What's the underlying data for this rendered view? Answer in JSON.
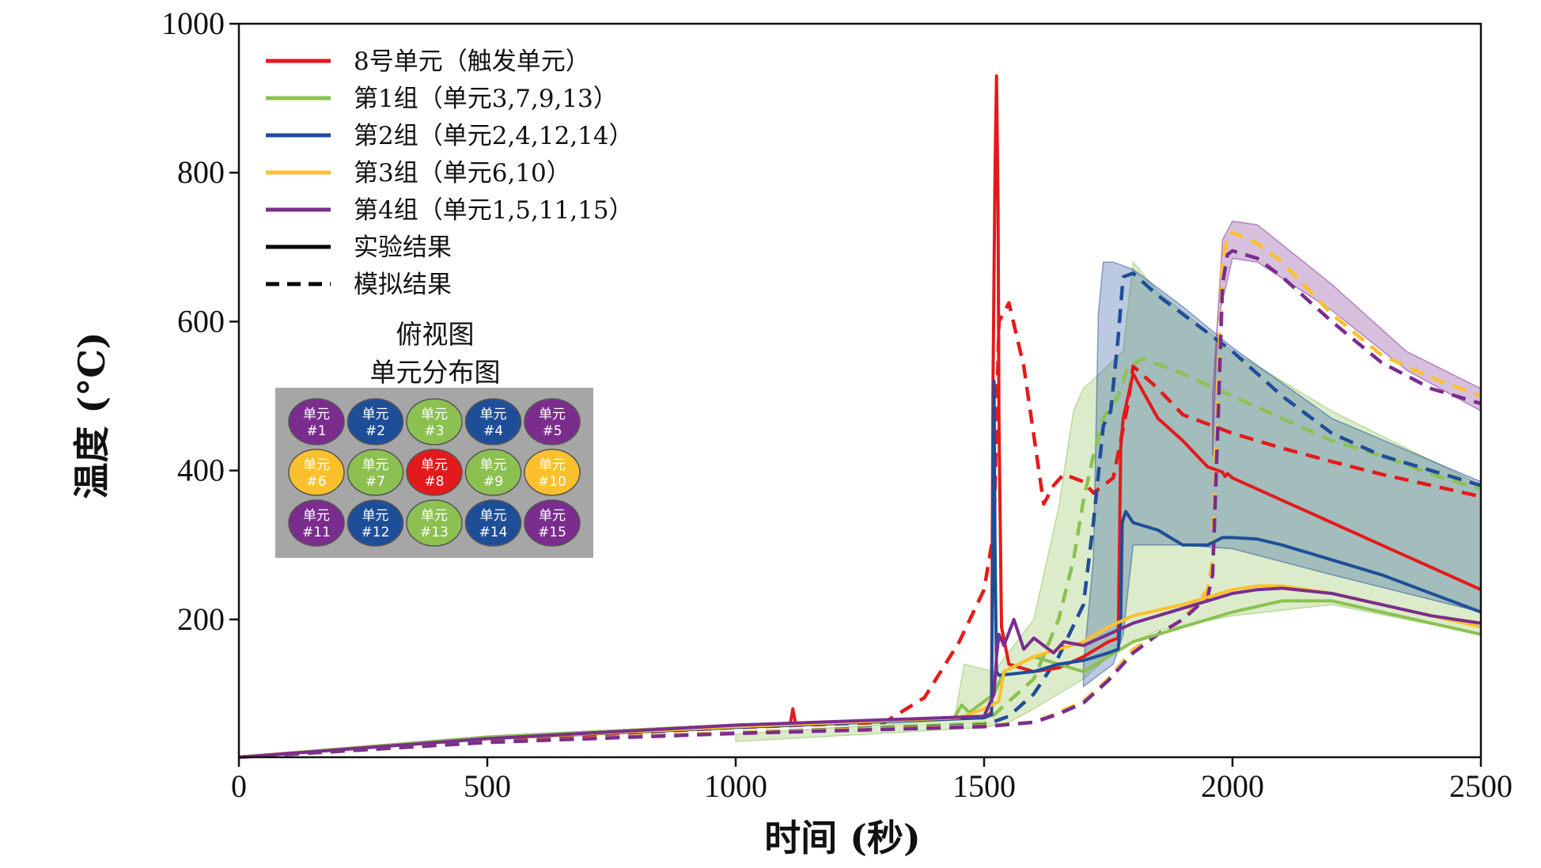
{
  "chart_data": {
    "type": "line",
    "xlabel": "时间 (秒)",
    "ylabel": "温度 (°C)",
    "xlim": [
      0,
      2500
    ],
    "ylim": [
      15,
      1000
    ],
    "xticks": [
      0,
      500,
      1000,
      1500,
      2000,
      2500
    ],
    "yticks": [
      200,
      400,
      600,
      800,
      1000
    ],
    "grid": false,
    "legend_position": "top-left",
    "legend": [
      {
        "label": "8号单元（触发单元）",
        "color": "#e31a1c",
        "style": "solid"
      },
      {
        "label": "第1组（单元3,7,9,13）",
        "color": "#8cc152",
        "style": "solid"
      },
      {
        "label": "第2组（单元2,4,12,14）",
        "color": "#1f4e99",
        "style": "solid"
      },
      {
        "label": "第3组（单元6,10）",
        "color": "#fbc02d",
        "style": "solid"
      },
      {
        "label": "第4组（单元1,5,11,15）",
        "color": "#7b2d8e",
        "style": "solid"
      },
      {
        "label": "实验结果",
        "color": "#000000",
        "style": "solid"
      },
      {
        "label": "模拟结果",
        "color": "#000000",
        "style": "dashed"
      }
    ],
    "bands": [
      {
        "name": "第1组",
        "color": "#8cc152",
        "upper": [
          [
            1000,
            46
          ],
          [
            1440,
            65
          ],
          [
            1460,
            140
          ],
          [
            1520,
            130
          ],
          [
            1600,
            200
          ],
          [
            1650,
            350
          ],
          [
            1680,
            480
          ],
          [
            1700,
            510
          ],
          [
            1780,
            560
          ],
          [
            1800,
            680
          ],
          [
            1850,
            640
          ],
          [
            2000,
            560
          ],
          [
            2200,
            480
          ],
          [
            2500,
            380
          ]
        ],
        "lower": [
          [
            2500,
            180
          ],
          [
            2200,
            220
          ],
          [
            2000,
            205
          ],
          [
            1850,
            185
          ],
          [
            1800,
            170
          ],
          [
            1750,
            150
          ],
          [
            1700,
            120
          ],
          [
            1650,
            100
          ],
          [
            1600,
            80
          ],
          [
            1550,
            62
          ],
          [
            1500,
            55
          ],
          [
            1000,
            36
          ]
        ]
      },
      {
        "name": "第2组",
        "color": "#1f4e99",
        "upper": [
          [
            1700,
            140
          ],
          [
            1720,
            280
          ],
          [
            1730,
            610
          ],
          [
            1740,
            680
          ],
          [
            1760,
            680
          ],
          [
            1800,
            670
          ],
          [
            1900,
            620
          ],
          [
            2000,
            565
          ],
          [
            2200,
            470
          ],
          [
            2500,
            385
          ]
        ],
        "lower": [
          [
            2500,
            210
          ],
          [
            2200,
            260
          ],
          [
            2000,
            295
          ],
          [
            1900,
            300
          ],
          [
            1800,
            300
          ],
          [
            1780,
            180
          ],
          [
            1760,
            140
          ],
          [
            1720,
            120
          ],
          [
            1700,
            110
          ]
        ]
      },
      {
        "name": "第4组",
        "color": "#7b2d8e",
        "upper": [
          [
            1960,
            500
          ],
          [
            1980,
            710
          ],
          [
            2000,
            735
          ],
          [
            2050,
            730
          ],
          [
            2200,
            650
          ],
          [
            2350,
            560
          ],
          [
            2500,
            510
          ]
        ],
        "lower": [
          [
            2500,
            480
          ],
          [
            2350,
            535
          ],
          [
            2200,
            615
          ],
          [
            2050,
            680
          ],
          [
            2000,
            685
          ],
          [
            1970,
            600
          ],
          [
            1960,
            420
          ]
        ]
      }
    ],
    "series": [
      {
        "name": "8号单元（触发单元）",
        "color": "#e31a1c",
        "style": "solid",
        "x": [
          0,
          500,
          1000,
          1110,
          1115,
          1120,
          1125,
          1500,
          1515,
          1518,
          1522,
          1525,
          1528,
          1530,
          1535,
          1550,
          1600,
          1650,
          1700,
          1750,
          1770,
          1775,
          1780,
          1790,
          1800,
          1850,
          1900,
          1950,
          1980,
          1985,
          1990,
          2000,
          2050,
          2100,
          2200,
          2300,
          2400,
          2500
        ],
        "y": [
          15,
          42,
          58,
          60,
          80,
          62,
          60,
          68,
          75,
          520,
          800,
          930,
          760,
          470,
          190,
          140,
          130,
          135,
          150,
          170,
          175,
          430,
          470,
          500,
          530,
          470,
          440,
          405,
          398,
          392,
          396,
          390,
          375,
          360,
          330,
          300,
          270,
          240
        ]
      },
      {
        "name": "8号单元（触发单元）",
        "color": "#e31a1c",
        "style": "dashed",
        "x": [
          0,
          500,
          1000,
          1300,
          1380,
          1450,
          1500,
          1520,
          1530,
          1550,
          1580,
          1620,
          1640,
          1660,
          1700,
          1720,
          1760,
          1790,
          1800,
          1850,
          1900,
          2000,
          2100,
          2200,
          2300,
          2400,
          2500
        ],
        "y": [
          15,
          38,
          55,
          62,
          95,
          170,
          240,
          320,
          600,
          625,
          540,
          355,
          380,
          395,
          385,
          370,
          390,
          490,
          540,
          510,
          475,
          450,
          430,
          412,
          395,
          380,
          365
        ]
      },
      {
        "name": "第1组（单元3,7,9,13）",
        "color": "#8cc152",
        "style": "solid",
        "x": [
          0,
          500,
          1000,
          1440,
          1455,
          1470,
          1500,
          1520,
          1540,
          1600,
          1650,
          1700,
          1750,
          1800,
          1900,
          2000,
          2100,
          2200,
          2300,
          2400,
          2500
        ],
        "y": [
          15,
          42,
          58,
          68,
          85,
          75,
          90,
          100,
          130,
          150,
          140,
          130,
          150,
          170,
          190,
          210,
          225,
          225,
          210,
          195,
          180
        ]
      },
      {
        "name": "第1组（单元3,7,9,13）",
        "color": "#8cc152",
        "style": "dashed",
        "x": [
          0,
          500,
          1000,
          1500,
          1600,
          1650,
          1680,
          1700,
          1720,
          1740,
          1770,
          1790,
          1820,
          1900,
          2000,
          2100,
          2200,
          2300,
          2400,
          2500
        ],
        "y": [
          15,
          35,
          48,
          60,
          120,
          200,
          280,
          360,
          420,
          470,
          500,
          540,
          550,
          530,
          500,
          470,
          440,
          420,
          395,
          375
        ]
      },
      {
        "name": "第2组（单元2,4,12,14）",
        "color": "#1f4e99",
        "style": "solid",
        "x": [
          0,
          500,
          1000,
          1500,
          1515,
          1520,
          1522,
          1525,
          1530,
          1600,
          1650,
          1700,
          1750,
          1770,
          1775,
          1778,
          1785,
          1800,
          1850,
          1900,
          1950,
          1980,
          2000,
          2050,
          2100,
          2200,
          2300,
          2400,
          2500
        ],
        "y": [
          15,
          40,
          55,
          68,
          72,
          520,
          300,
          130,
          125,
          130,
          140,
          145,
          155,
          160,
          200,
          330,
          345,
          330,
          320,
          300,
          300,
          310,
          310,
          308,
          300,
          280,
          260,
          235,
          210
        ]
      },
      {
        "name": "第2组（单元2,4,12,14）",
        "color": "#1f4e99",
        "style": "dashed",
        "x": [
          0,
          500,
          1000,
          1500,
          1550,
          1600,
          1650,
          1700,
          1720,
          1740,
          1755,
          1770,
          1780,
          1800,
          1850,
          1900,
          2000,
          2100,
          2200,
          2300,
          2400,
          2500
        ],
        "y": [
          15,
          35,
          48,
          58,
          70,
          100,
          150,
          220,
          330,
          460,
          480,
          580,
          660,
          665,
          635,
          610,
          560,
          500,
          450,
          420,
          400,
          380
        ]
      },
      {
        "name": "第3组（单元6,10）",
        "color": "#fbc02d",
        "style": "solid",
        "x": [
          0,
          500,
          1000,
          1450,
          1500,
          1530,
          1540,
          1600,
          1650,
          1700,
          1750,
          1800,
          1900,
          1950,
          2000,
          2050,
          2100,
          2200,
          2300,
          2400,
          2500
        ],
        "y": [
          15,
          40,
          56,
          68,
          80,
          90,
          130,
          150,
          160,
          170,
          190,
          205,
          220,
          230,
          240,
          245,
          245,
          235,
          220,
          205,
          190
        ]
      },
      {
        "name": "第3组（单元6,10）",
        "color": "#fbc02d",
        "style": "dashed",
        "x": [
          0,
          500,
          1000,
          1500,
          1600,
          1650,
          1700,
          1750,
          1800,
          1900,
          1950,
          1960,
          1970,
          1980,
          1990,
          2000,
          2050,
          2100,
          2200,
          2300,
          2400,
          2500
        ],
        "y": [
          15,
          35,
          48,
          57,
          62,
          75,
          90,
          120,
          160,
          200,
          240,
          280,
          500,
          680,
          715,
          720,
          705,
          680,
          610,
          555,
          525,
          500
        ]
      },
      {
        "name": "第4组（单元1,5,11,15）",
        "color": "#7b2d8e",
        "style": "solid",
        "x": [
          0,
          500,
          1000,
          1500,
          1520,
          1525,
          1530,
          1540,
          1560,
          1580,
          1600,
          1640,
          1660,
          1700,
          1750,
          1800,
          1900,
          1950,
          2000,
          2050,
          2100,
          2200,
          2300,
          2400,
          2500
        ],
        "y": [
          15,
          40,
          58,
          70,
          100,
          150,
          180,
          165,
          200,
          160,
          175,
          155,
          170,
          165,
          180,
          195,
          215,
          225,
          235,
          240,
          242,
          235,
          220,
          205,
          195
        ]
      },
      {
        "name": "第4组（单元1,5,11,15）",
        "color": "#7b2d8e",
        "style": "dashed",
        "x": [
          0,
          500,
          1000,
          1500,
          1600,
          1650,
          1700,
          1750,
          1800,
          1850,
          1900,
          1950,
          1960,
          1970,
          1980,
          1990,
          2000,
          2050,
          2100,
          2200,
          2300,
          2400,
          2500
        ],
        "y": [
          15,
          35,
          47,
          56,
          62,
          73,
          88,
          118,
          155,
          180,
          200,
          230,
          260,
          450,
          650,
          690,
          695,
          685,
          660,
          600,
          545,
          510,
          490
        ]
      }
    ],
    "inset": {
      "title_line1": "俯视图",
      "title_line2": "单元分布图",
      "cells": [
        {
          "label": "单元",
          "num": "#1",
          "color": "#7b2d8e"
        },
        {
          "label": "单元",
          "num": "#2",
          "color": "#1f4e99"
        },
        {
          "label": "单元",
          "num": "#3",
          "color": "#8cc152"
        },
        {
          "label": "单元",
          "num": "#4",
          "color": "#1f4e99"
        },
        {
          "label": "单元",
          "num": "#5",
          "color": "#7b2d8e"
        },
        {
          "label": "单元",
          "num": "#6",
          "color": "#fbc02d"
        },
        {
          "label": "单元",
          "num": "#7",
          "color": "#8cc152"
        },
        {
          "label": "单元",
          "num": "#8",
          "color": "#e31a1c"
        },
        {
          "label": "单元",
          "num": "#9",
          "color": "#8cc152"
        },
        {
          "label": "单元",
          "num": "#10",
          "color": "#fbc02d"
        },
        {
          "label": "单元",
          "num": "#11",
          "color": "#7b2d8e"
        },
        {
          "label": "单元",
          "num": "#12",
          "color": "#1f4e99"
        },
        {
          "label": "单元",
          "num": "#13",
          "color": "#8cc152"
        },
        {
          "label": "单元",
          "num": "#14",
          "color": "#1f4e99"
        },
        {
          "label": "单元",
          "num": "#15",
          "color": "#7b2d8e"
        }
      ]
    }
  }
}
